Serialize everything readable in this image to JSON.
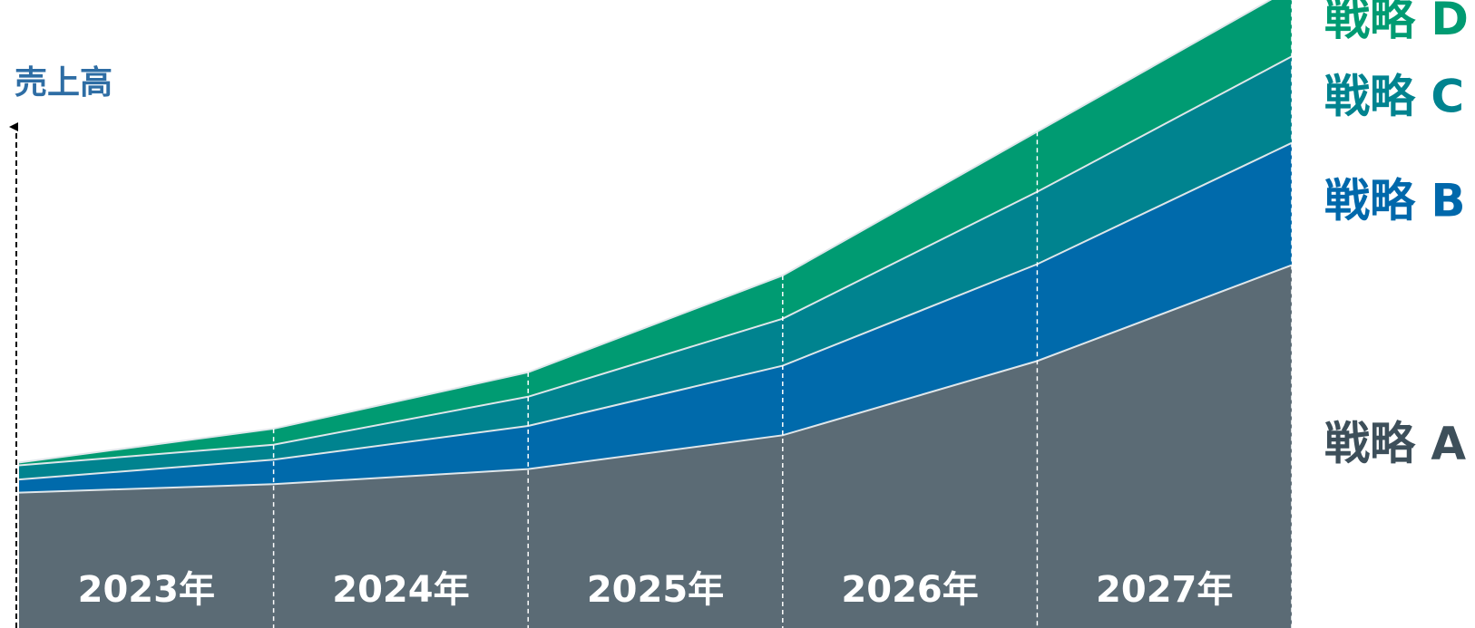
{
  "chart_data": {
    "type": "stacked_area",
    "y_label": "売上高",
    "categories": [
      "2023年",
      "2024年",
      "2025年",
      "2026年",
      "2027年",
      null
    ],
    "ylim": [
      0,
      668
    ],
    "series": [
      {
        "name": "戦略 A",
        "color": "#5b6b75",
        "label_color": "#3d4f5a",
        "values": [
          144,
          153,
          169,
          205,
          284,
          386
        ]
      },
      {
        "name": "戦略 B",
        "color": "#006aab",
        "label_color": "#0068ab",
        "values": [
          14,
          26,
          46,
          74,
          103,
          130
        ]
      },
      {
        "name": "戦略 C",
        "color": "#00838f",
        "label_color": "#00838f",
        "values": [
          15,
          16,
          31,
          50,
          77,
          92
        ]
      },
      {
        "name": "戦略 D",
        "color": "#009b72",
        "label_color": "#009b72",
        "values": [
          3,
          17,
          26,
          46,
          64,
          73
        ]
      }
    ]
  }
}
